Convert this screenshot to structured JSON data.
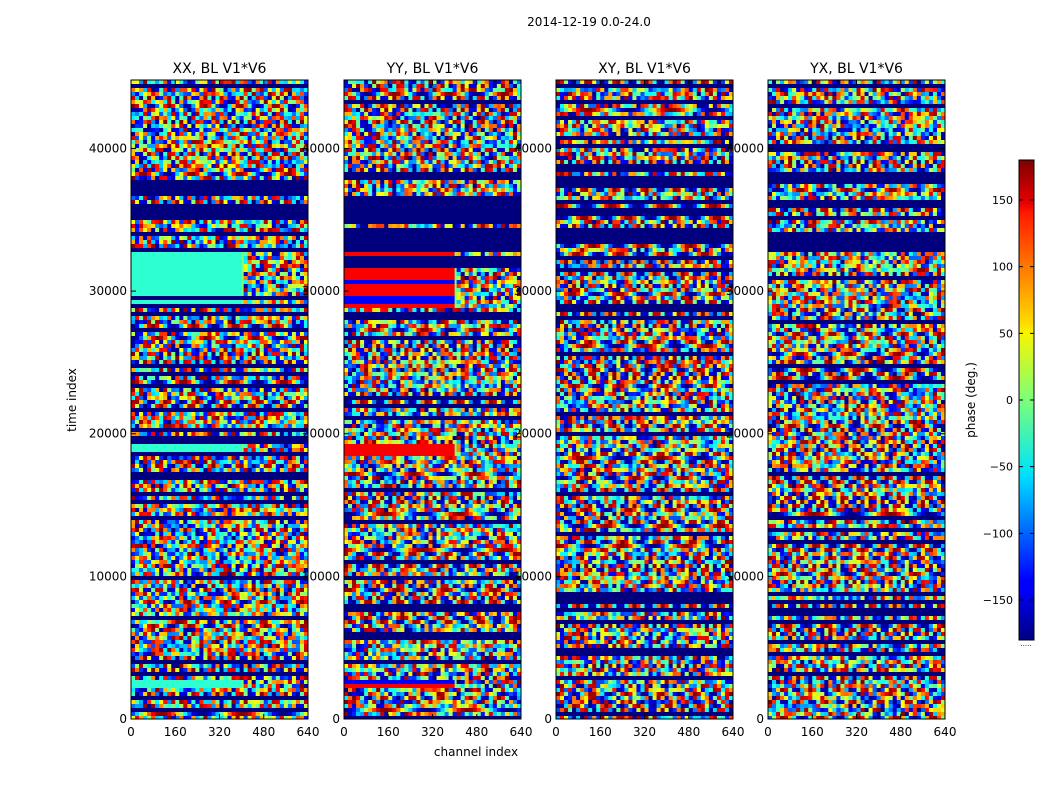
{
  "chart_data": {
    "type": "heatmap",
    "suptitle": "2014-12-19 0.0-24.0",
    "xlabel": "channel index",
    "ylabel": "time index",
    "xlim": [
      0,
      640
    ],
    "ylim": [
      0,
      44800
    ],
    "xticks": [
      0,
      160,
      320,
      480,
      640
    ],
    "yticks": [
      0,
      10000,
      20000,
      30000,
      40000
    ],
    "panels": [
      {
        "title": "XX, BL V1*V6",
        "has_ylabel": true,
        "has_xlabel": false
      },
      {
        "title": "YY, BL V1*V6",
        "has_ylabel": false,
        "has_xlabel": true
      },
      {
        "title": "XY, BL V1*V6",
        "has_ylabel": false,
        "has_xlabel": false
      },
      {
        "title": "YX, BL V1*V6",
        "has_ylabel": false,
        "has_xlabel": false
      }
    ],
    "colorbar": {
      "label": "phase (deg.)",
      "vmin": -180,
      "vmax": 180,
      "ticks": [
        -150,
        -100,
        -50,
        0,
        50,
        100,
        150
      ],
      "colormap": "jet",
      "extra_mark": "....."
    },
    "features": [
      {
        "name": "dense horizontal stripe band",
        "time_range": [
          33000,
          38500
        ]
      },
      {
        "name": "flat phase band (XX, YY)",
        "time_range": [
          29000,
          33000
        ],
        "channel_range": [
          0,
          400
        ]
      },
      {
        "name": "flat phase band (XX, YY)",
        "time_range": [
          18500,
          19500
        ],
        "channel_range": [
          0,
          400
        ]
      },
      {
        "name": "flat phase band (XX, YY)",
        "time_range": [
          2200,
          3000
        ],
        "channel_range": [
          0,
          400
        ]
      }
    ]
  }
}
